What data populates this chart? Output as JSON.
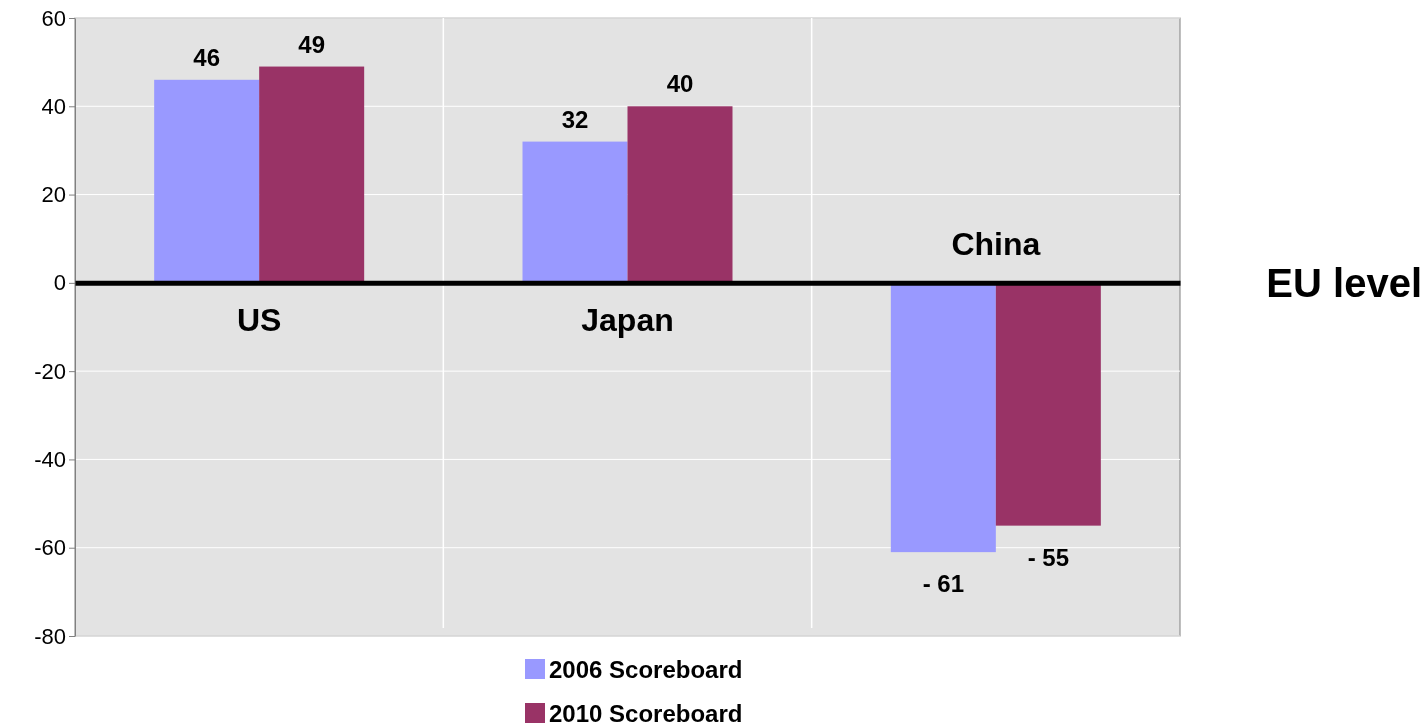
{
  "chart_data": {
    "type": "bar",
    "categories": [
      "US",
      "Japan",
      "China"
    ],
    "series": [
      {
        "name": "2006 Scoreboard",
        "color": "#9999ff",
        "values": [
          46,
          32,
          -61
        ],
        "value_labels": [
          "46",
          "32",
          "- 61"
        ]
      },
      {
        "name": "2010 Scoreboard",
        "color": "#993366",
        "values": [
          49,
          40,
          -55
        ],
        "value_labels": [
          "49",
          "40",
          "- 55"
        ]
      }
    ],
    "ylim": [
      -80,
      60
    ],
    "yticks": [
      -80,
      -60,
      -40,
      -20,
      0,
      20,
      40,
      60
    ],
    "grid": true,
    "legend": "bottom",
    "annotations": [
      "EU level"
    ]
  }
}
